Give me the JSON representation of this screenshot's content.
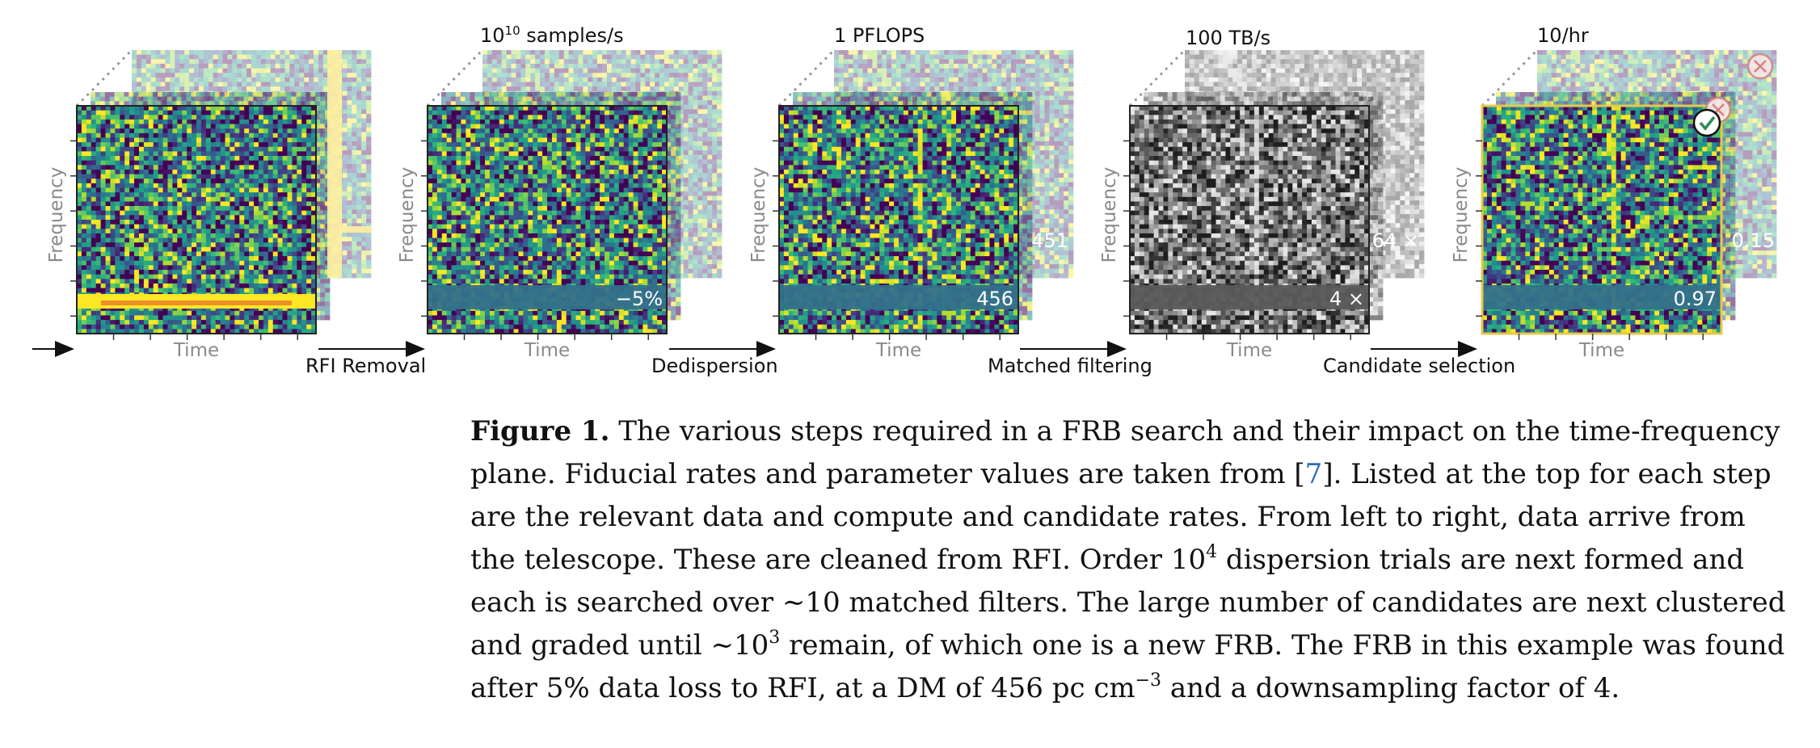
{
  "pipeline": {
    "steps": [
      {
        "rate_base": "10",
        "rate_exp": "10",
        "rate_rest": " samples/s",
        "rate": "",
        "arrow_label": "RFI Removal",
        "overlay": "−5%",
        "back_overlay": ""
      },
      {
        "rate_base": "",
        "rate_exp": "",
        "rate_rest": "",
        "rate": "1 PFLOPS",
        "arrow_label": "Dedispersion",
        "overlay": "456",
        "back_overlay": "451"
      },
      {
        "rate_base": "",
        "rate_exp": "",
        "rate_rest": "",
        "rate": "100 TB/s",
        "arrow_label": "Matched filtering",
        "overlay": "4 ×",
        "back_overlay": "64 ×"
      },
      {
        "rate_base": "",
        "rate_exp": "",
        "rate_rest": "",
        "rate": "10/hr",
        "arrow_label": "Candidate selection",
        "overlay": "0.97",
        "back_overlay": "0.15"
      }
    ],
    "axis_x": "Time",
    "axis_y": "Frequency",
    "colors": {
      "viridis_dark": "#3b0f70",
      "viridis_mid": "#21908c",
      "viridis_yellow": "#fde725",
      "selected_border": "#e6c84a",
      "check_mark": "#2e8b57",
      "reject_mark": "#d98080"
    },
    "icons": [
      "check-icon",
      "reject-icon"
    ]
  },
  "caption": {
    "label": "Figure 1.",
    "s1": " The various steps required in a FRB search and their impact on the time-frequency plane. Fiducial rates and parameter values are taken from [",
    "ref": "7",
    "s2": "]. Listed at the top for each step are the relevant data and compute and candidate rates. From left to right, data arrive from the telescope. These are cleaned from RFI. Order 10",
    "sup1": "4",
    "s3": " dispersion trials are next formed and each is searched over ∼10 matched filters. The large number of candidates are next clustered and graded until ∼10",
    "sup2": "3",
    "s4": " remain, of which one is a new FRB. The FRB in this example was found after 5% data loss to RFI, at a DM of 456 pc cm",
    "sup3": "−3",
    "s5": " and a downsampling factor of 4."
  }
}
